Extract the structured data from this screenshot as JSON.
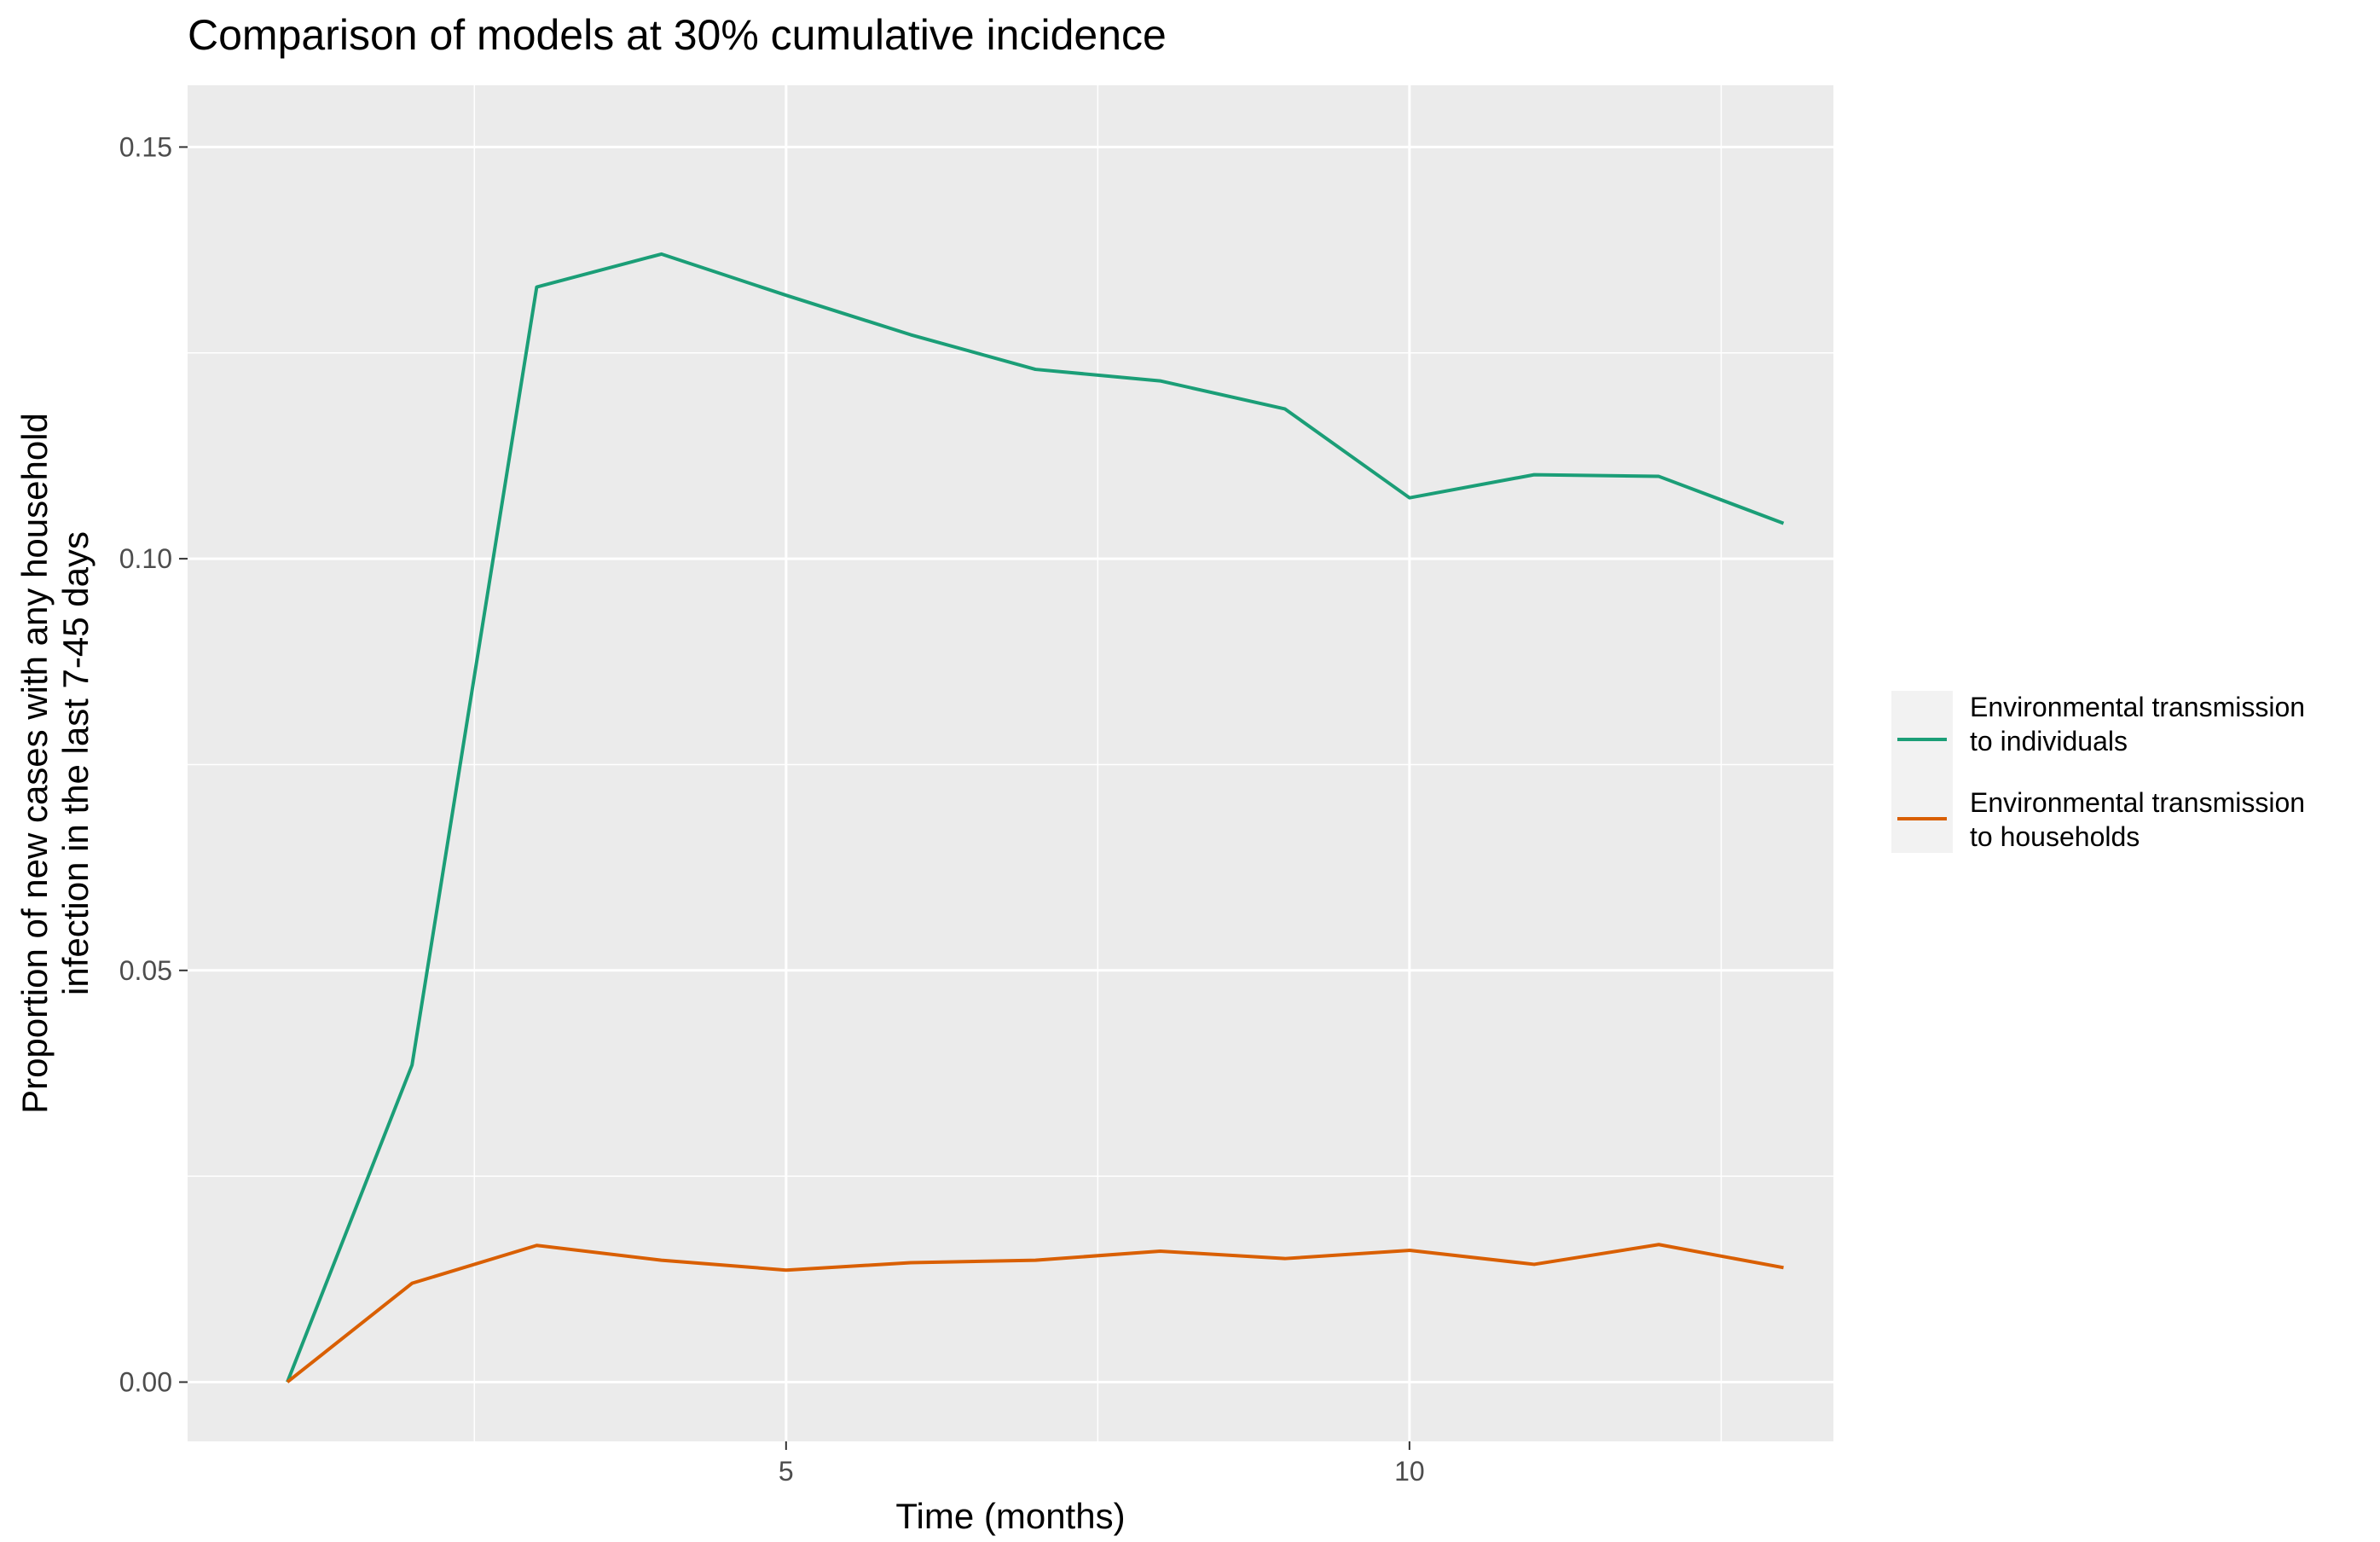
{
  "chart_data": {
    "type": "line",
    "title": "Comparison of models at 30% cumulative incidence",
    "xlabel": "Time (months)",
    "ylabel_lines": [
      "Proportion of new cases with any household",
      "infection in the last 7-45 days"
    ],
    "xlim": [
      0.2,
      13.4
    ],
    "ylim": [
      -0.0072,
      0.1575
    ],
    "x_ticks": [
      {
        "value": 5,
        "label": "5"
      },
      {
        "value": 10,
        "label": "10"
      }
    ],
    "x_minor": [
      2.5,
      7.5,
      12.5
    ],
    "y_ticks": [
      {
        "value": 0.0,
        "label": "0.00"
      },
      {
        "value": 0.05,
        "label": "0.05"
      },
      {
        "value": 0.1,
        "label": "0.10"
      },
      {
        "value": 0.15,
        "label": "0.15"
      }
    ],
    "y_minor": [
      0.025,
      0.075,
      0.125
    ],
    "grid": true,
    "legend_position": "right",
    "x": [
      1,
      2,
      3,
      4,
      5,
      6,
      7,
      8,
      9,
      10,
      11,
      12,
      13
    ],
    "series": [
      {
        "name_lines": [
          "Environmental transmission",
          "to individuals"
        ],
        "color": "#1b9e77",
        "values": [
          0.0,
          0.0385,
          0.133,
          0.137,
          0.132,
          0.1272,
          0.123,
          0.1216,
          0.1182,
          0.1074,
          0.1102,
          0.11,
          0.1043
        ]
      },
      {
        "name_lines": [
          "Environmental transmission",
          "to households"
        ],
        "color": "#d95f02",
        "values": [
          0.0,
          0.012,
          0.0166,
          0.0148,
          0.0136,
          0.0145,
          0.0148,
          0.0159,
          0.015,
          0.016,
          0.0143,
          0.0167,
          0.0139
        ]
      }
    ]
  }
}
